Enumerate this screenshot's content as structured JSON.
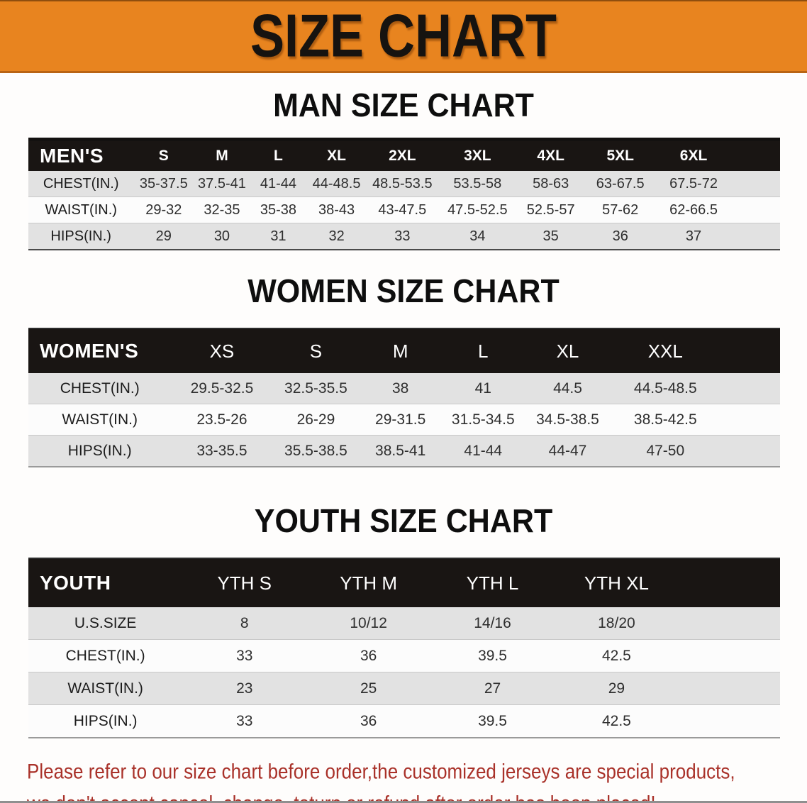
{
  "banner": {
    "title": "SIZE CHART"
  },
  "colors": {
    "banner_bg": "#E8841F",
    "header_bar": "#191513",
    "row_gray": "#E2E2E2",
    "footer_red": "#A93129"
  },
  "sections": [
    {
      "heading": "MAN SIZE CHART",
      "table": {
        "header_label": "MEN'S",
        "columns": [
          "S",
          "M",
          "L",
          "XL",
          "2XL",
          "3XL",
          "4XL",
          "5XL",
          "6XL"
        ],
        "rows": [
          {
            "label": "CHEST(IN.)",
            "values": [
              "35-37.5",
              "37.5-41",
              "41-44",
              "44-48.5",
              "48.5-53.5",
              "53.5-58",
              "58-63",
              "63-67.5",
              "67.5-72"
            ]
          },
          {
            "label": "WAIST(IN.)",
            "values": [
              "29-32",
              "32-35",
              "35-38",
              "38-43",
              "43-47.5",
              "47.5-52.5",
              "52.5-57",
              "57-62",
              "62-66.5"
            ]
          },
          {
            "label": "HIPS(IN.)",
            "values": [
              "29",
              "30",
              "31",
              "32",
              "33",
              "34",
              "35",
              "36",
              "37"
            ]
          }
        ]
      }
    },
    {
      "heading": "WOMEN SIZE CHART",
      "table": {
        "header_label": "WOMEN'S",
        "columns": [
          "XS",
          "S",
          "M",
          "L",
          "XL",
          "XXL"
        ],
        "rows": [
          {
            "label": "CHEST(IN.)",
            "values": [
              "29.5-32.5",
              "32.5-35.5",
              "38",
              "41",
              "44.5",
              "44.5-48.5"
            ]
          },
          {
            "label": "WAIST(IN.)",
            "values": [
              "23.5-26",
              "26-29",
              "29-31.5",
              "31.5-34.5",
              "34.5-38.5",
              "38.5-42.5"
            ]
          },
          {
            "label": "HIPS(IN.)",
            "values": [
              "33-35.5",
              "35.5-38.5",
              "38.5-41",
              "41-44",
              "44-47",
              "47-50"
            ]
          }
        ]
      }
    },
    {
      "heading": "YOUTH SIZE CHART",
      "table": {
        "header_label": "YOUTH",
        "columns": [
          "YTH S",
          "YTH M",
          "YTH L",
          "YTH XL"
        ],
        "rows": [
          {
            "label": "U.S.SIZE",
            "values": [
              "8",
              "10/12",
              "14/16",
              "18/20"
            ]
          },
          {
            "label": "CHEST(IN.)",
            "values": [
              "33",
              "36",
              "39.5",
              "42.5"
            ]
          },
          {
            "label": "WAIST(IN.)",
            "values": [
              "23",
              "25",
              "27",
              "29"
            ]
          },
          {
            "label": "HIPS(IN.)",
            "values": [
              "33",
              "36",
              "39.5",
              "42.5"
            ]
          }
        ]
      }
    }
  ],
  "footer": {
    "line1": "Please refer to our size chart before order,the customized jerseys are special products,",
    "line2": "we don't accept cancel, change, teturn or refund after order has been placed!"
  }
}
